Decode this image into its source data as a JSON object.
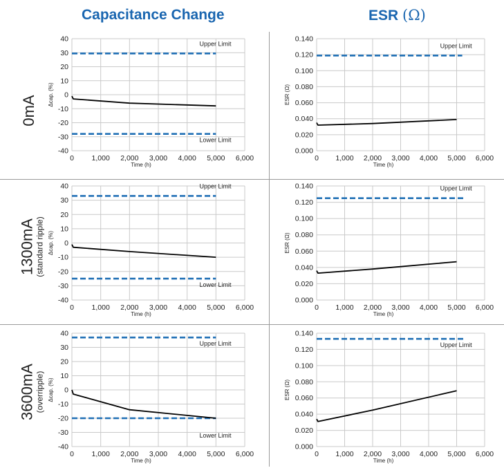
{
  "headers": {
    "capacitance": "Capacitance Change",
    "esr_text": "ESR",
    "esr_unit": "(Ω)"
  },
  "rows": [
    {
      "label": "0mA",
      "sublabel": ""
    },
    {
      "label": "1300mA",
      "sublabel": "(standard ripple)"
    },
    {
      "label": "3600mA",
      "sublabel": "(overripple)"
    }
  ],
  "colors": {
    "limit_line": "#1f6fb5",
    "data_line": "#000000",
    "grid": "#c9c9c9",
    "header": "#1a66b0"
  },
  "chart_data": [
    {
      "type": "line",
      "row": "0mA",
      "panel": "capacitance",
      "xlabel": "Time (h)",
      "ylabel": "Δcap. (%)",
      "xlim": [
        0,
        6000
      ],
      "ylim": [
        -40,
        40
      ],
      "xticks": [
        "0",
        "1,000",
        "2,000",
        "3,000",
        "4,000",
        "5,000",
        "6,000"
      ],
      "yticks": [
        "-40",
        "-30",
        "-20",
        "-10",
        "0",
        "10",
        "20",
        "30",
        "40"
      ],
      "series": [
        {
          "x": [
            0,
            48,
            2000,
            5000
          ],
          "y": [
            -1,
            -3,
            -6,
            -8
          ]
        }
      ],
      "limits": [
        {
          "label": "Upper Limit",
          "value": 29.5,
          "x_start": 0,
          "x_end": 5000,
          "label_pos": "above"
        },
        {
          "label": "Lower Limit",
          "value": -28,
          "x_start": 0,
          "x_end": 5000,
          "label_pos": "below"
        }
      ]
    },
    {
      "type": "line",
      "row": "0mA",
      "panel": "esr",
      "xlabel": "Time (h)",
      "ylabel": "ESR (Ω)",
      "xlim": [
        0,
        6000
      ],
      "ylim": [
        0,
        0.14
      ],
      "xticks": [
        "0",
        "1,000",
        "2,000",
        "3,000",
        "4,000",
        "5,000",
        "6,000"
      ],
      "yticks": [
        "0.000",
        "0.020",
        "0.040",
        "0.060",
        "0.080",
        "0.100",
        "0.120",
        "0.140"
      ],
      "series": [
        {
          "x": [
            0,
            48,
            2000,
            5000
          ],
          "y": [
            0.035,
            0.032,
            0.034,
            0.039
          ]
        }
      ],
      "limits": [
        {
          "label": "Upper Limit",
          "value": 0.119,
          "x_start": 0,
          "x_end": 5200,
          "label_pos": "above"
        }
      ]
    },
    {
      "type": "line",
      "row": "1300mA",
      "panel": "capacitance",
      "xlabel": "Time (h)",
      "ylabel": "Δcap. (%)",
      "xlim": [
        0,
        6000
      ],
      "ylim": [
        -40,
        40
      ],
      "xticks": [
        "0",
        "1,000",
        "2,000",
        "3,000",
        "4,000",
        "5,000",
        "6,000"
      ],
      "yticks": [
        "-40",
        "-30",
        "-20",
        "-10",
        "0",
        "10",
        "20",
        "30",
        "40"
      ],
      "series": [
        {
          "x": [
            0,
            48,
            2000,
            5000
          ],
          "y": [
            -1,
            -3,
            -6,
            -10
          ]
        }
      ],
      "limits": [
        {
          "label": "Upper Limit",
          "value": 33,
          "x_start": 0,
          "x_end": 5000,
          "label_pos": "above"
        },
        {
          "label": "Lower Limit",
          "value": -25,
          "x_start": 0,
          "x_end": 5000,
          "label_pos": "below"
        }
      ]
    },
    {
      "type": "line",
      "row": "1300mA",
      "panel": "esr",
      "xlabel": "Time (h)",
      "ylabel": "ESR (Ω)",
      "xlim": [
        0,
        6000
      ],
      "ylim": [
        0,
        0.14
      ],
      "xticks": [
        "0",
        "1,000",
        "2,000",
        "3,000",
        "4,000",
        "5,000",
        "6,000"
      ],
      "yticks": [
        "0.000",
        "0.020",
        "0.040",
        "0.060",
        "0.080",
        "0.100",
        "0.120",
        "0.140"
      ],
      "series": [
        {
          "x": [
            0,
            48,
            2000,
            5000
          ],
          "y": [
            0.036,
            0.033,
            0.038,
            0.047
          ]
        }
      ],
      "limits": [
        {
          "label": "Upper Limit",
          "value": 0.125,
          "x_start": 0,
          "x_end": 5300,
          "label_pos": "above"
        }
      ]
    },
    {
      "type": "line",
      "row": "3600mA",
      "panel": "capacitance",
      "xlabel": "Time (h)",
      "ylabel": "Δcap. (%)",
      "xlim": [
        0,
        6000
      ],
      "ylim": [
        -40,
        40
      ],
      "xticks": [
        "0",
        "1,000",
        "2,000",
        "3,000",
        "4,000",
        "5,000",
        "6,000"
      ],
      "yticks": [
        "-40",
        "-30",
        "-20",
        "-10",
        "0",
        "10",
        "20",
        "30",
        "40"
      ],
      "series": [
        {
          "x": [
            0,
            48,
            2000,
            5000
          ],
          "y": [
            0,
            -3,
            -14,
            -20
          ]
        }
      ],
      "limits": [
        {
          "label": "Upper Limit",
          "value": 37,
          "x_start": 0,
          "x_end": 5000,
          "label_pos": "below"
        },
        {
          "label": "Lower Limit",
          "value": -20,
          "x_start": 0,
          "x_end": 5000,
          "label_pos": "below_far"
        }
      ]
    },
    {
      "type": "line",
      "row": "3600mA",
      "panel": "esr",
      "xlabel": "Time (h)",
      "ylabel": "ESR (Ω)",
      "xlim": [
        0,
        6000
      ],
      "ylim": [
        0,
        0.14
      ],
      "xticks": [
        "0",
        "1,000",
        "2,000",
        "3,000",
        "4,000",
        "5,000",
        "6,000"
      ],
      "yticks": [
        "0.000",
        "0.020",
        "0.040",
        "0.060",
        "0.080",
        "0.100",
        "0.120",
        "0.140"
      ],
      "series": [
        {
          "x": [
            0,
            48,
            2000,
            5000
          ],
          "y": [
            0.034,
            0.031,
            0.045,
            0.069
          ]
        }
      ],
      "limits": [
        {
          "label": "Upper Limit",
          "value": 0.133,
          "x_start": 0,
          "x_end": 5300,
          "label_pos": "below"
        }
      ]
    }
  ]
}
